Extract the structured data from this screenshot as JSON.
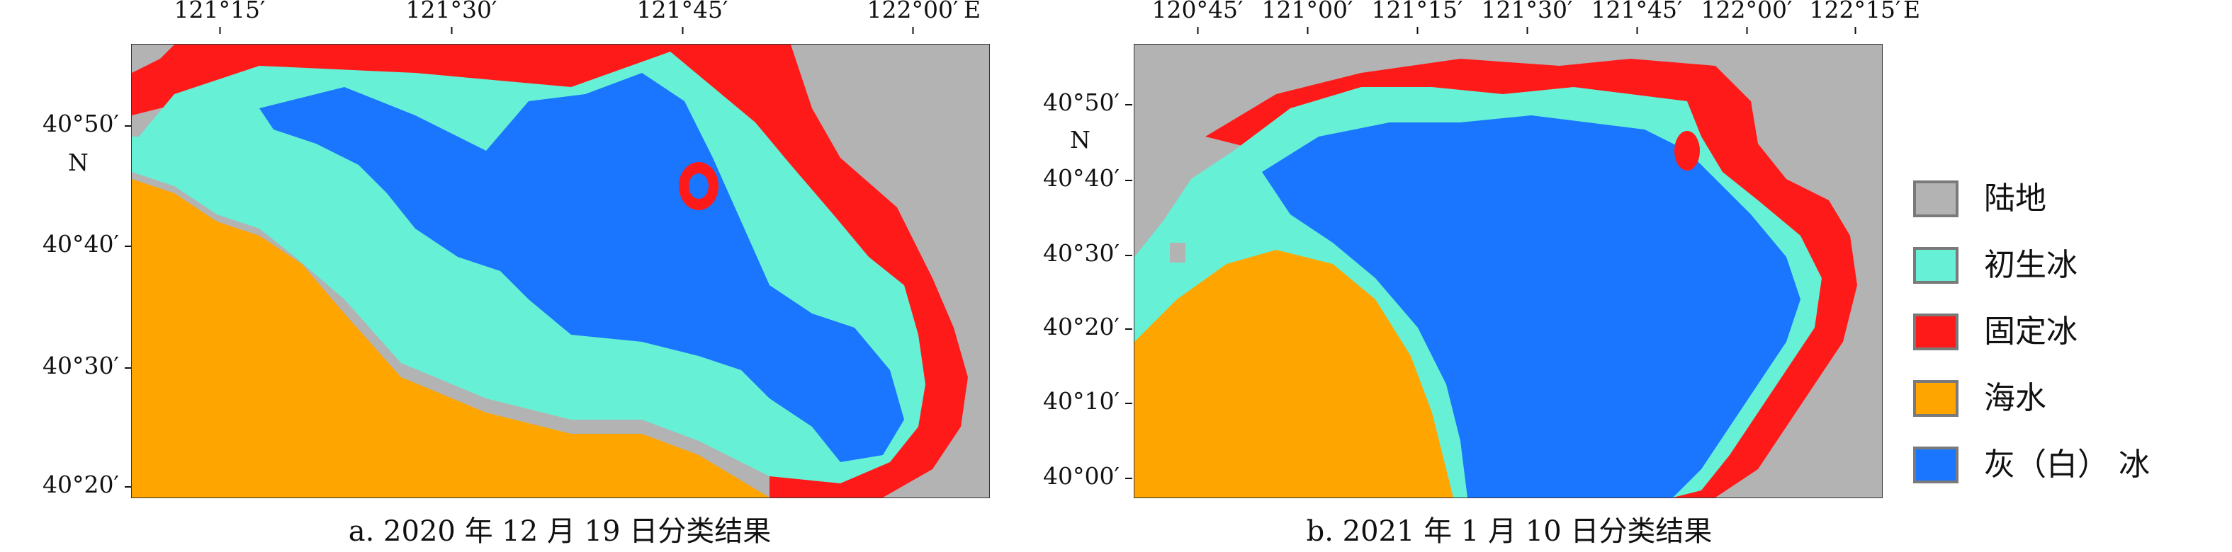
{
  "colors": {
    "land": "#b3b3b3",
    "nilas": "#66f0d6",
    "fast_ice": "#ff1a1a",
    "sea_water": "#ffa500",
    "grey_white_ice": "#1a75ff"
  },
  "panel_a": {
    "lon_ticks": [
      "121°15′",
      "121°30′",
      "121°45′",
      "122°00′"
    ],
    "lon_unit": "E",
    "lat_ticks": [
      "40°50′",
      "40°40′",
      "40°30′",
      "40°20′"
    ],
    "lat_unit": "N",
    "caption": "a. 2020 年 12 月 19 日分类结果"
  },
  "panel_b": {
    "lon_ticks": [
      "120°45′",
      "121°00′",
      "121°15′",
      "121°30′",
      "121°45′",
      "122°00′",
      "122°15′"
    ],
    "lon_unit": "E",
    "lat_ticks": [
      "40°50′",
      "40°40′",
      "40°30′",
      "40°20′",
      "40°10′",
      "40°00′"
    ],
    "lat_unit": "N",
    "caption": "b. 2021 年 1 月 10 日分类结果"
  },
  "legend": {
    "items": [
      {
        "label": "陆地",
        "icon": "land-swatch"
      },
      {
        "label": "初生冰",
        "icon": "nilas-swatch"
      },
      {
        "label": "固定冰",
        "icon": "fast-ice-swatch"
      },
      {
        "label": "海水",
        "icon": "sea-water-swatch"
      },
      {
        "label": "灰（白） 冰",
        "icon": "grey-white-ice-swatch"
      }
    ]
  }
}
